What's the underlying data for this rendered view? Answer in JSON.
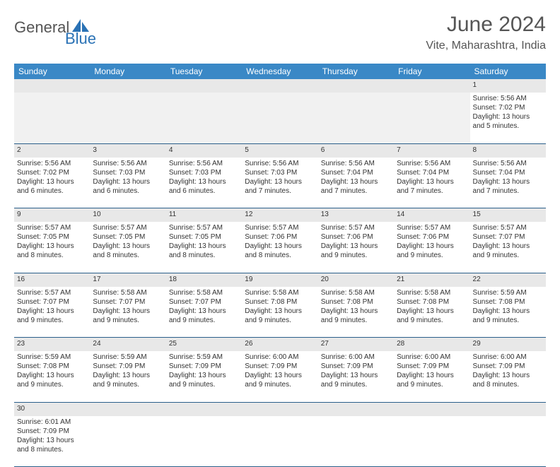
{
  "logo": {
    "part1": "General",
    "part2": "Blue"
  },
  "title": "June 2024",
  "location": "Vite, Maharashtra, India",
  "colors": {
    "header_bg": "#3a88c6",
    "header_text": "#ffffff",
    "daynum_bg": "#e8e8e8",
    "border": "#2a5f8a",
    "logo_gray": "#555555",
    "logo_blue": "#2a72b5"
  },
  "day_headers": [
    "Sunday",
    "Monday",
    "Tuesday",
    "Wednesday",
    "Thursday",
    "Friday",
    "Saturday"
  ],
  "weeks": [
    [
      null,
      null,
      null,
      null,
      null,
      null,
      {
        "n": "1",
        "sr": "Sunrise: 5:56 AM",
        "ss": "Sunset: 7:02 PM",
        "dl": "Daylight: 13 hours and 5 minutes."
      }
    ],
    [
      {
        "n": "2",
        "sr": "Sunrise: 5:56 AM",
        "ss": "Sunset: 7:02 PM",
        "dl": "Daylight: 13 hours and 6 minutes."
      },
      {
        "n": "3",
        "sr": "Sunrise: 5:56 AM",
        "ss": "Sunset: 7:03 PM",
        "dl": "Daylight: 13 hours and 6 minutes."
      },
      {
        "n": "4",
        "sr": "Sunrise: 5:56 AM",
        "ss": "Sunset: 7:03 PM",
        "dl": "Daylight: 13 hours and 6 minutes."
      },
      {
        "n": "5",
        "sr": "Sunrise: 5:56 AM",
        "ss": "Sunset: 7:03 PM",
        "dl": "Daylight: 13 hours and 7 minutes."
      },
      {
        "n": "6",
        "sr": "Sunrise: 5:56 AM",
        "ss": "Sunset: 7:04 PM",
        "dl": "Daylight: 13 hours and 7 minutes."
      },
      {
        "n": "7",
        "sr": "Sunrise: 5:56 AM",
        "ss": "Sunset: 7:04 PM",
        "dl": "Daylight: 13 hours and 7 minutes."
      },
      {
        "n": "8",
        "sr": "Sunrise: 5:56 AM",
        "ss": "Sunset: 7:04 PM",
        "dl": "Daylight: 13 hours and 7 minutes."
      }
    ],
    [
      {
        "n": "9",
        "sr": "Sunrise: 5:57 AM",
        "ss": "Sunset: 7:05 PM",
        "dl": "Daylight: 13 hours and 8 minutes."
      },
      {
        "n": "10",
        "sr": "Sunrise: 5:57 AM",
        "ss": "Sunset: 7:05 PM",
        "dl": "Daylight: 13 hours and 8 minutes."
      },
      {
        "n": "11",
        "sr": "Sunrise: 5:57 AM",
        "ss": "Sunset: 7:05 PM",
        "dl": "Daylight: 13 hours and 8 minutes."
      },
      {
        "n": "12",
        "sr": "Sunrise: 5:57 AM",
        "ss": "Sunset: 7:06 PM",
        "dl": "Daylight: 13 hours and 8 minutes."
      },
      {
        "n": "13",
        "sr": "Sunrise: 5:57 AM",
        "ss": "Sunset: 7:06 PM",
        "dl": "Daylight: 13 hours and 9 minutes."
      },
      {
        "n": "14",
        "sr": "Sunrise: 5:57 AM",
        "ss": "Sunset: 7:06 PM",
        "dl": "Daylight: 13 hours and 9 minutes."
      },
      {
        "n": "15",
        "sr": "Sunrise: 5:57 AM",
        "ss": "Sunset: 7:07 PM",
        "dl": "Daylight: 13 hours and 9 minutes."
      }
    ],
    [
      {
        "n": "16",
        "sr": "Sunrise: 5:57 AM",
        "ss": "Sunset: 7:07 PM",
        "dl": "Daylight: 13 hours and 9 minutes."
      },
      {
        "n": "17",
        "sr": "Sunrise: 5:58 AM",
        "ss": "Sunset: 7:07 PM",
        "dl": "Daylight: 13 hours and 9 minutes."
      },
      {
        "n": "18",
        "sr": "Sunrise: 5:58 AM",
        "ss": "Sunset: 7:07 PM",
        "dl": "Daylight: 13 hours and 9 minutes."
      },
      {
        "n": "19",
        "sr": "Sunrise: 5:58 AM",
        "ss": "Sunset: 7:08 PM",
        "dl": "Daylight: 13 hours and 9 minutes."
      },
      {
        "n": "20",
        "sr": "Sunrise: 5:58 AM",
        "ss": "Sunset: 7:08 PM",
        "dl": "Daylight: 13 hours and 9 minutes."
      },
      {
        "n": "21",
        "sr": "Sunrise: 5:58 AM",
        "ss": "Sunset: 7:08 PM",
        "dl": "Daylight: 13 hours and 9 minutes."
      },
      {
        "n": "22",
        "sr": "Sunrise: 5:59 AM",
        "ss": "Sunset: 7:08 PM",
        "dl": "Daylight: 13 hours and 9 minutes."
      }
    ],
    [
      {
        "n": "23",
        "sr": "Sunrise: 5:59 AM",
        "ss": "Sunset: 7:08 PM",
        "dl": "Daylight: 13 hours and 9 minutes."
      },
      {
        "n": "24",
        "sr": "Sunrise: 5:59 AM",
        "ss": "Sunset: 7:09 PM",
        "dl": "Daylight: 13 hours and 9 minutes."
      },
      {
        "n": "25",
        "sr": "Sunrise: 5:59 AM",
        "ss": "Sunset: 7:09 PM",
        "dl": "Daylight: 13 hours and 9 minutes."
      },
      {
        "n": "26",
        "sr": "Sunrise: 6:00 AM",
        "ss": "Sunset: 7:09 PM",
        "dl": "Daylight: 13 hours and 9 minutes."
      },
      {
        "n": "27",
        "sr": "Sunrise: 6:00 AM",
        "ss": "Sunset: 7:09 PM",
        "dl": "Daylight: 13 hours and 9 minutes."
      },
      {
        "n": "28",
        "sr": "Sunrise: 6:00 AM",
        "ss": "Sunset: 7:09 PM",
        "dl": "Daylight: 13 hours and 9 minutes."
      },
      {
        "n": "29",
        "sr": "Sunrise: 6:00 AM",
        "ss": "Sunset: 7:09 PM",
        "dl": "Daylight: 13 hours and 8 minutes."
      }
    ],
    [
      {
        "n": "30",
        "sr": "Sunrise: 6:01 AM",
        "ss": "Sunset: 7:09 PM",
        "dl": "Daylight: 13 hours and 8 minutes."
      },
      null,
      null,
      null,
      null,
      null,
      null
    ]
  ]
}
